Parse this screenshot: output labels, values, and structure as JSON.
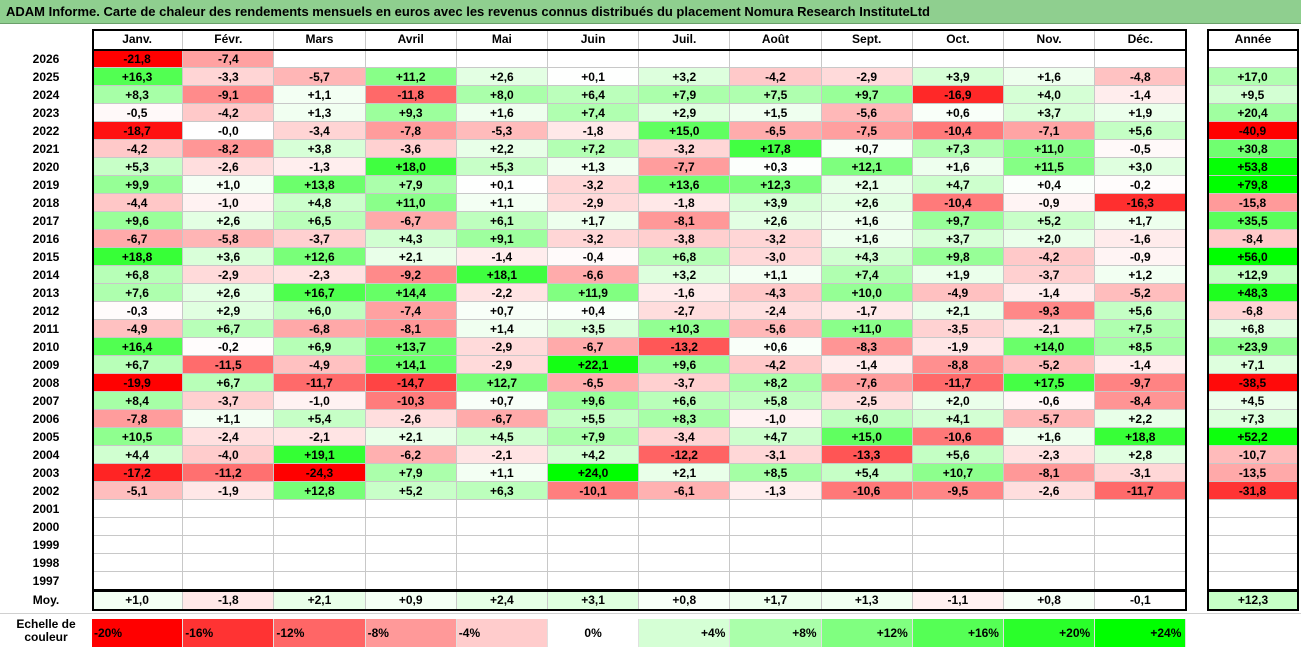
{
  "title": "ADAM Informe. Carte de chaleur des rendements mensuels en euros avec les revenus connus distribués du placement Nomura Research InstituteLtd",
  "chart_data": {
    "type": "heatmap",
    "months": [
      "Janv.",
      "Févr.",
      "Mars",
      "Avril",
      "Mai",
      "Juin",
      "Juil.",
      "Août",
      "Sept.",
      "Oct.",
      "Nov.",
      "Déc."
    ],
    "year_header": "Année",
    "rows": [
      {
        "year": "2026",
        "values": [
          "-21,8",
          "-7,4",
          "",
          "",
          "",
          "",
          "",
          "",
          "",
          "",
          "",
          ""
        ],
        "annual": ""
      },
      {
        "year": "2025",
        "values": [
          "+16,3",
          "-3,3",
          "-5,7",
          "+11,2",
          "+2,6",
          "+0,1",
          "+3,2",
          "-4,2",
          "-2,9",
          "+3,9",
          "+1,6",
          "-4,8"
        ],
        "annual": "+17,0"
      },
      {
        "year": "2024",
        "values": [
          "+8,3",
          "-9,1",
          "+1,1",
          "-11,8",
          "+8,0",
          "+6,4",
          "+7,9",
          "+7,5",
          "+9,7",
          "-16,9",
          "+4,0",
          "-1,4"
        ],
        "annual": "+9,5"
      },
      {
        "year": "2023",
        "values": [
          "-0,5",
          "-4,2",
          "+1,3",
          "+9,3",
          "+1,6",
          "+7,4",
          "+2,9",
          "+1,5",
          "-5,6",
          "+0,6",
          "+3,7",
          "+1,9"
        ],
        "annual": "+20,4"
      },
      {
        "year": "2022",
        "values": [
          "-18,7",
          "-0,0",
          "-3,4",
          "-7,8",
          "-5,3",
          "-1,8",
          "+15,0",
          "-6,5",
          "-7,5",
          "-10,4",
          "-7,1",
          "+5,6"
        ],
        "annual": "-40,9"
      },
      {
        "year": "2021",
        "values": [
          "-4,2",
          "-8,2",
          "+3,8",
          "-3,6",
          "+2,2",
          "+7,2",
          "-3,2",
          "+17,8",
          "+0,7",
          "+7,3",
          "+11,0",
          "-0,5"
        ],
        "annual": "+30,8"
      },
      {
        "year": "2020",
        "values": [
          "+5,3",
          "-2,6",
          "-1,3",
          "+18,0",
          "+5,3",
          "+1,3",
          "-7,7",
          "+0,3",
          "+12,1",
          "+1,6",
          "+11,5",
          "+3,0"
        ],
        "annual": "+53,8"
      },
      {
        "year": "2019",
        "values": [
          "+9,9",
          "+1,0",
          "+13,8",
          "+7,9",
          "+0,1",
          "-3,2",
          "+13,6",
          "+12,3",
          "+2,1",
          "+4,7",
          "+0,4",
          "-0,2"
        ],
        "annual": "+79,8"
      },
      {
        "year": "2018",
        "values": [
          "-4,4",
          "-1,0",
          "+4,8",
          "+11,0",
          "+1,1",
          "-2,9",
          "-1,8",
          "+3,9",
          "+2,6",
          "-10,4",
          "-0,9",
          "-16,3"
        ],
        "annual": "-15,8"
      },
      {
        "year": "2017",
        "values": [
          "+9,6",
          "+2,6",
          "+6,5",
          "-6,7",
          "+6,1",
          "+1,7",
          "-8,1",
          "+2,6",
          "+1,6",
          "+9,7",
          "+5,2",
          "+1,7"
        ],
        "annual": "+35,5"
      },
      {
        "year": "2016",
        "values": [
          "-6,7",
          "-5,8",
          "-3,7",
          "+4,3",
          "+9,1",
          "-3,2",
          "-3,8",
          "-3,2",
          "+1,6",
          "+3,7",
          "+2,0",
          "-1,6"
        ],
        "annual": "-8,4"
      },
      {
        "year": "2015",
        "values": [
          "+18,8",
          "+3,6",
          "+12,6",
          "+2,1",
          "-1,4",
          "-0,4",
          "+6,8",
          "-3,0",
          "+4,3",
          "+9,8",
          "-4,2",
          "-0,9"
        ],
        "annual": "+56,0"
      },
      {
        "year": "2014",
        "values": [
          "+6,8",
          "-2,9",
          "-2,3",
          "-9,2",
          "+18,1",
          "-6,6",
          "+3,2",
          "+1,1",
          "+7,4",
          "+1,9",
          "-3,7",
          "+1,2"
        ],
        "annual": "+12,9"
      },
      {
        "year": "2013",
        "values": [
          "+7,6",
          "+2,6",
          "+16,7",
          "+14,4",
          "-2,2",
          "+11,9",
          "-1,6",
          "-4,3",
          "+10,0",
          "-4,9",
          "-1,4",
          "-5,2"
        ],
        "annual": "+48,3"
      },
      {
        "year": "2012",
        "values": [
          "-0,3",
          "+2,9",
          "+6,0",
          "-7,4",
          "+0,7",
          "+0,4",
          "-2,7",
          "-2,4",
          "-1,7",
          "+2,1",
          "-9,3",
          "+5,6"
        ],
        "annual": "-6,8"
      },
      {
        "year": "2011",
        "values": [
          "-4,9",
          "+6,7",
          "-6,8",
          "-8,1",
          "+1,4",
          "+3,5",
          "+10,3",
          "-5,6",
          "+11,0",
          "-3,5",
          "-2,1",
          "+7,5"
        ],
        "annual": "+6,8"
      },
      {
        "year": "2010",
        "values": [
          "+16,4",
          "-0,2",
          "+6,9",
          "+13,7",
          "-2,9",
          "-6,7",
          "-13,2",
          "+0,6",
          "-8,3",
          "-1,9",
          "+14,0",
          "+8,5"
        ],
        "annual": "+23,9"
      },
      {
        "year": "2009",
        "values": [
          "+6,7",
          "-11,5",
          "-4,9",
          "+14,1",
          "-2,9",
          "+22,1",
          "+9,6",
          "-4,2",
          "-1,4",
          "-8,8",
          "-5,2",
          "-1,4"
        ],
        "annual": "+7,1"
      },
      {
        "year": "2008",
        "values": [
          "-19,9",
          "+6,7",
          "-11,7",
          "-14,7",
          "+12,7",
          "-6,5",
          "-3,7",
          "+8,2",
          "-7,6",
          "-11,7",
          "+17,5",
          "-9,7"
        ],
        "annual": "-38,5"
      },
      {
        "year": "2007",
        "values": [
          "+8,4",
          "-3,7",
          "-1,0",
          "-10,3",
          "+0,7",
          "+9,6",
          "+6,6",
          "+5,8",
          "-2,5",
          "+2,0",
          "-0,6",
          "-8,4"
        ],
        "annual": "+4,5"
      },
      {
        "year": "2006",
        "values": [
          "-7,8",
          "+1,1",
          "+5,4",
          "-2,6",
          "-6,7",
          "+5,5",
          "+8,3",
          "-1,0",
          "+6,0",
          "+4,1",
          "-5,7",
          "+2,2"
        ],
        "annual": "+7,3"
      },
      {
        "year": "2005",
        "values": [
          "+10,5",
          "-2,4",
          "-2,1",
          "+2,1",
          "+4,5",
          "+7,9",
          "-3,4",
          "+4,7",
          "+15,0",
          "-10,6",
          "+1,6",
          "+18,8"
        ],
        "annual": "+52,2"
      },
      {
        "year": "2004",
        "values": [
          "+4,4",
          "-4,0",
          "+19,1",
          "-6,2",
          "-2,1",
          "+4,2",
          "-12,2",
          "-3,1",
          "-13,3",
          "+5,6",
          "-2,3",
          "+2,8"
        ],
        "annual": "-10,7"
      },
      {
        "year": "2003",
        "values": [
          "-17,2",
          "-11,2",
          "-24,3",
          "+7,9",
          "+1,1",
          "+24,0",
          "+2,1",
          "+8,5",
          "+5,4",
          "+10,7",
          "-8,1",
          "-3,1"
        ],
        "annual": "-13,5"
      },
      {
        "year": "2002",
        "values": [
          "-5,1",
          "-1,9",
          "+12,8",
          "+5,2",
          "+6,3",
          "-10,1",
          "-6,1",
          "-1,3",
          "-10,6",
          "-9,5",
          "-2,6",
          "-11,7"
        ],
        "annual": "-31,8"
      },
      {
        "year": "2001",
        "values": [
          "",
          "",
          "",
          "",
          "",
          "",
          "",
          "",
          "",
          "",
          "",
          ""
        ],
        "annual": ""
      },
      {
        "year": "2000",
        "values": [
          "",
          "",
          "",
          "",
          "",
          "",
          "",
          "",
          "",
          "",
          "",
          ""
        ],
        "annual": ""
      },
      {
        "year": "1999",
        "values": [
          "",
          "",
          "",
          "",
          "",
          "",
          "",
          "",
          "",
          "",
          "",
          ""
        ],
        "annual": ""
      },
      {
        "year": "1998",
        "values": [
          "",
          "",
          "",
          "",
          "",
          "",
          "",
          "",
          "",
          "",
          "",
          ""
        ],
        "annual": ""
      },
      {
        "year": "1997",
        "values": [
          "",
          "",
          "",
          "",
          "",
          "",
          "",
          "",
          "",
          "",
          "",
          ""
        ],
        "annual": ""
      }
    ],
    "average": {
      "label": "Moy.",
      "values": [
        "+1,0",
        "-1,8",
        "+2,1",
        "+0,9",
        "+2,4",
        "+3,1",
        "+0,8",
        "+1,7",
        "+1,3",
        "-1,1",
        "+0,8",
        "-0,1"
      ],
      "annual": "+12,3"
    },
    "color_scale": {
      "label_line1": "Echelle de",
      "label_line2": "couleur",
      "stops": [
        "-20%",
        "-16%",
        "-12%",
        "-8%",
        "-4%",
        "0%",
        "+4%",
        "+8%",
        "+12%",
        "+16%",
        "+20%",
        "+24%"
      ],
      "negative_color": "#ff0000",
      "positive_color": "#00ff00",
      "neutral_color": "#ffffff"
    }
  }
}
